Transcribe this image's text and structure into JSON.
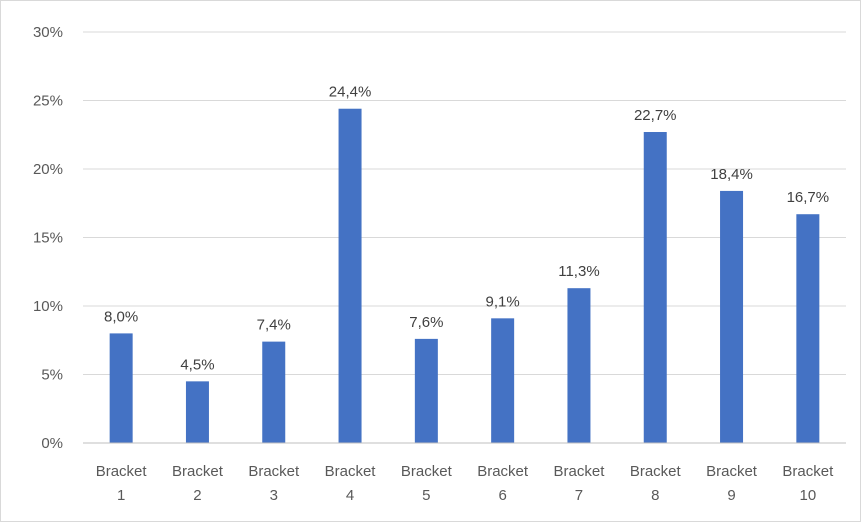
{
  "chart_data": {
    "type": "bar",
    "categories": [
      [
        "Bracket",
        "1"
      ],
      [
        "Bracket",
        "2"
      ],
      [
        "Bracket",
        "3"
      ],
      [
        "Bracket",
        "4"
      ],
      [
        "Bracket",
        "5"
      ],
      [
        "Bracket",
        "6"
      ],
      [
        "Bracket",
        "7"
      ],
      [
        "Bracket",
        "8"
      ],
      [
        "Bracket",
        "9"
      ],
      [
        "Bracket",
        "10"
      ]
    ],
    "values": [
      8.0,
      4.5,
      7.4,
      24.4,
      7.6,
      9.1,
      11.3,
      22.7,
      18.4,
      16.7
    ],
    "data_labels": [
      "8,0%",
      "4,5%",
      "7,4%",
      "24,4%",
      "7,6%",
      "9,1%",
      "11,3%",
      "22,7%",
      "18,4%",
      "16,7%"
    ],
    "y_ticks": [
      0,
      5,
      10,
      15,
      20,
      25,
      30
    ],
    "y_tick_labels": [
      "0%",
      "5%",
      "10%",
      "15%",
      "20%",
      "25%",
      "30%"
    ],
    "ylim": [
      0,
      30
    ],
    "title": "",
    "xlabel": "",
    "ylabel": "",
    "grid": true,
    "legend": "none",
    "colors": {
      "bar": "#4472C4",
      "grid": "#d9d9d9",
      "axis": "#bfbfbf"
    }
  }
}
